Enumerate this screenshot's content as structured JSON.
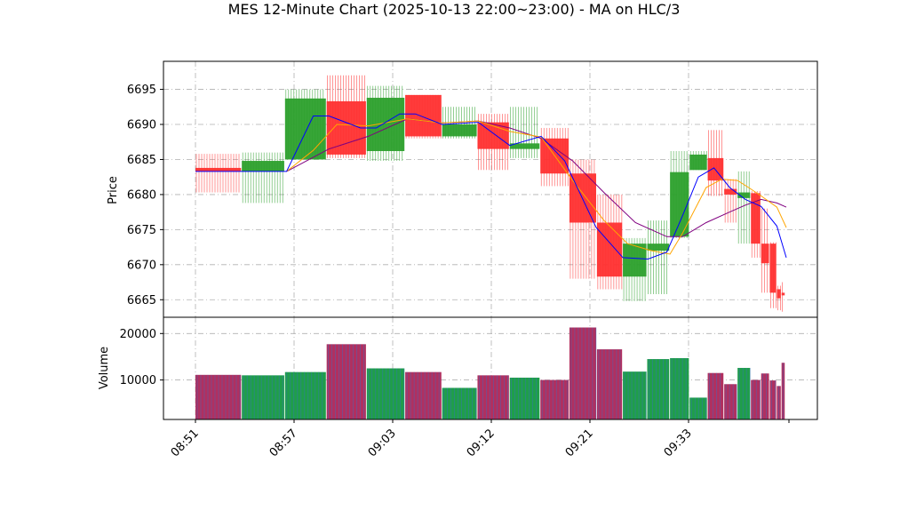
{
  "chart_data": {
    "type": "candlestick",
    "title": "MES 12-Minute Chart (2025-10-13 22:00~23:00) - MA on HLC/3",
    "ylabel_price": "Price",
    "ylabel_volume": "Volume",
    "x_ticks": [
      "08:51",
      "08:57",
      "09:03",
      "09:12",
      "09:21",
      "09:33"
    ],
    "price_yticks": [
      6665,
      6670,
      6675,
      6680,
      6685,
      6690,
      6695
    ],
    "volume_yticks": [
      10000,
      20000
    ],
    "price_ylim": [
      6662.5,
      6699
    ],
    "volume_ylim": [
      1500,
      23500
    ],
    "grid": true,
    "colors": {
      "up": "#2ca02c",
      "down": "#ff3030",
      "ma_fast": "#0000ff",
      "ma_mid": "#ffa500",
      "ma_slow": "#800080"
    },
    "bars": [
      {
        "t": 0,
        "w": 2.9,
        "open": 6683.8,
        "close": 6683.3,
        "high": 6685.8,
        "low": 6680.3,
        "volume": 11100
      },
      {
        "t": 2.95,
        "w": 2.7,
        "open": 6683.3,
        "close": 6684.8,
        "high": 6686.0,
        "low": 6678.8,
        "volume": 11000
      },
      {
        "t": 5.7,
        "w": 2.6,
        "open": 6685.0,
        "close": 6693.7,
        "high": 6695.0,
        "low": 6685.0,
        "volume": 11700
      },
      {
        "t": 8.35,
        "w": 2.5,
        "open": 6693.3,
        "close": 6685.7,
        "high": 6697.0,
        "low": 6685.2,
        "volume": 17700
      },
      {
        "t": 10.9,
        "w": 2.4,
        "open": 6686.2,
        "close": 6693.8,
        "high": 6695.5,
        "low": 6684.8,
        "volume": 12500
      },
      {
        "t": 13.35,
        "w": 2.3,
        "open": 6694.2,
        "close": 6688.3,
        "high": 6694.2,
        "low": 6688.0,
        "volume": 11700
      },
      {
        "t": 15.7,
        "w": 2.2,
        "open": 6688.3,
        "close": 6690.0,
        "high": 6692.5,
        "low": 6688.0,
        "volume": 8300
      },
      {
        "t": 17.95,
        "w": 2.0,
        "open": 6690.3,
        "close": 6686.5,
        "high": 6691.5,
        "low": 6683.5,
        "volume": 11000
      },
      {
        "t": 20.0,
        "w": 1.9,
        "open": 6686.5,
        "close": 6687.3,
        "high": 6692.5,
        "low": 6685.2,
        "volume": 10500
      },
      {
        "t": 21.95,
        "w": 1.8,
        "open": 6688.0,
        "close": 6683.0,
        "high": 6689.5,
        "low": 6681.2,
        "volume": 10000
      },
      {
        "t": 23.8,
        "w": 1.7,
        "open": 6683.0,
        "close": 6676.0,
        "high": 6685.0,
        "low": 6668.0,
        "volume": 21300
      },
      {
        "t": 25.55,
        "w": 1.6,
        "open": 6676.0,
        "close": 6668.3,
        "high": 6680.0,
        "low": 6666.5,
        "volume": 16600
      },
      {
        "t": 27.2,
        "w": 1.5,
        "open": 6668.3,
        "close": 6673.0,
        "high": 6673.8,
        "low": 6664.8,
        "volume": 11800
      },
      {
        "t": 28.75,
        "w": 1.4,
        "open": 6672.0,
        "close": 6673.0,
        "high": 6676.3,
        "low": 6665.8,
        "volume": 14500
      },
      {
        "t": 30.2,
        "w": 1.2,
        "open": 6674.0,
        "close": 6683.2,
        "high": 6686.2,
        "low": 6673.8,
        "volume": 14700
      },
      {
        "t": 31.45,
        "w": 1.1,
        "open": 6683.5,
        "close": 6685.7,
        "high": 6686.2,
        "low": 6683.5,
        "volume": 6200
      },
      {
        "t": 32.6,
        "w": 1.0,
        "open": 6685.2,
        "close": 6682.0,
        "high": 6689.2,
        "low": 6679.8,
        "volume": 11500
      },
      {
        "t": 33.65,
        "w": 0.8,
        "open": 6680.8,
        "close": 6680.0,
        "high": 6682.2,
        "low": 6676.0,
        "volume": 9100
      },
      {
        "t": 34.5,
        "w": 0.8,
        "open": 6679.5,
        "close": 6680.3,
        "high": 6683.3,
        "low": 6673.0,
        "volume": 12600
      },
      {
        "t": 35.35,
        "w": 0.6,
        "open": 6680.2,
        "close": 6673.0,
        "high": 6680.5,
        "low": 6671.0,
        "volume": 10000
      },
      {
        "t": 36.0,
        "w": 0.5,
        "open": 6673.0,
        "close": 6670.2,
        "high": 6678.0,
        "low": 6666.0,
        "volume": 11400
      },
      {
        "t": 36.55,
        "w": 0.4,
        "open": 6673.0,
        "close": 6666.0,
        "high": 6673.2,
        "low": 6663.8,
        "volume": 9900
      },
      {
        "t": 37.0,
        "w": 0.25,
        "open": 6666.5,
        "close": 6665.2,
        "high": 6667.0,
        "low": 6663.5,
        "volume": 8700
      },
      {
        "t": 37.3,
        "w": 0.2,
        "open": 6666.0,
        "close": 6665.8,
        "high": 6667.5,
        "low": 6663.3,
        "volume": 13700
      }
    ],
    "ma_fast": [
      [
        0,
        6683.3
      ],
      [
        3.0,
        6683.3
      ],
      [
        5.8,
        6683.3
      ],
      [
        7.5,
        6691.2
      ],
      [
        8.5,
        6691.2
      ],
      [
        10.5,
        6689.5
      ],
      [
        11.5,
        6689.5
      ],
      [
        13.0,
        6691.5
      ],
      [
        14.0,
        6691.5
      ],
      [
        15.7,
        6690.0
      ],
      [
        18.0,
        6690.3
      ],
      [
        20.0,
        6687.0
      ],
      [
        22.0,
        6688.3
      ],
      [
        23.5,
        6684.8
      ],
      [
        25.5,
        6675.3
      ],
      [
        27.2,
        6671.0
      ],
      [
        28.8,
        6670.8
      ],
      [
        30.0,
        6671.8
      ],
      [
        31.0,
        6677.0
      ],
      [
        32.0,
        6682.5
      ],
      [
        33.0,
        6683.8
      ],
      [
        34.0,
        6681.0
      ],
      [
        35.0,
        6679.3
      ],
      [
        36.0,
        6678.3
      ],
      [
        37.0,
        6675.5
      ],
      [
        37.6,
        6671.0
      ]
    ],
    "ma_mid": [
      [
        5.8,
        6683.3
      ],
      [
        7.5,
        6686.3
      ],
      [
        9.0,
        6690.0
      ],
      [
        11.0,
        6689.8
      ],
      [
        13.5,
        6690.8
      ],
      [
        15.7,
        6690.2
      ],
      [
        18.0,
        6690.5
      ],
      [
        20.0,
        6689.0
      ],
      [
        22.0,
        6688.2
      ],
      [
        24.0,
        6682.0
      ],
      [
        26.0,
        6676.3
      ],
      [
        27.5,
        6673.0
      ],
      [
        29.0,
        6672.0
      ],
      [
        30.2,
        6671.5
      ],
      [
        31.0,
        6674.5
      ],
      [
        32.5,
        6681.0
      ],
      [
        33.5,
        6682.2
      ],
      [
        34.5,
        6682.0
      ],
      [
        35.2,
        6681.0
      ],
      [
        36.0,
        6679.8
      ],
      [
        37.0,
        6678.2
      ],
      [
        37.6,
        6675.3
      ]
    ],
    "ma_slow": [
      [
        5.8,
        6683.3
      ],
      [
        8.5,
        6686.5
      ],
      [
        11.0,
        6688.3
      ],
      [
        13.5,
        6690.8
      ],
      [
        15.7,
        6690.2
      ],
      [
        18.0,
        6690.5
      ],
      [
        20.0,
        6689.5
      ],
      [
        22.0,
        6688.0
      ],
      [
        24.0,
        6684.8
      ],
      [
        26.0,
        6680.3
      ],
      [
        28.0,
        6676.0
      ],
      [
        30.0,
        6674.0
      ],
      [
        31.0,
        6674.0
      ],
      [
        32.5,
        6676.0
      ],
      [
        34.0,
        6677.5
      ],
      [
        35.0,
        6678.5
      ],
      [
        36.0,
        6679.3
      ],
      [
        37.0,
        6678.8
      ],
      [
        37.6,
        6678.2
      ]
    ]
  }
}
